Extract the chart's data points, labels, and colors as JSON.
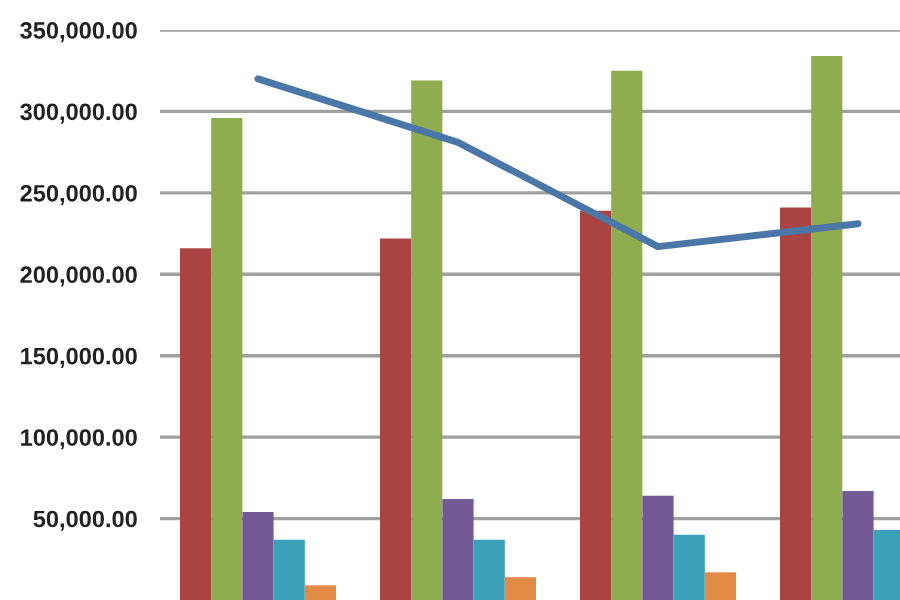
{
  "chart_data": {
    "type": "bar",
    "categories": [
      null,
      null,
      null,
      null
    ],
    "series": [
      {
        "color": "#a94442",
        "values": [
          216000,
          222000,
          239000,
          241000
        ]
      },
      {
        "color": "#8fac4e",
        "values": [
          296000,
          319000,
          325000,
          334000
        ]
      },
      {
        "color": "#735996",
        "values": [
          54000,
          62000,
          64000,
          67000
        ]
      },
      {
        "color": "#3ba1b9",
        "values": [
          37000,
          37000,
          40000,
          43000
        ]
      },
      {
        "color": "#e08a45",
        "values": [
          9000,
          14000,
          17000,
          null
        ]
      },
      {
        "type": "line",
        "color": "#4a76a8",
        "values": [
          320000,
          281000,
          217000,
          231000
        ]
      }
    ],
    "ylim": [
      0,
      350000
    ],
    "yticks": [
      {
        "value": 50000,
        "label": "50,000.00"
      },
      {
        "value": 100000,
        "label": "100,000.00"
      },
      {
        "value": 150000,
        "label": "150,000.00"
      },
      {
        "value": 200000,
        "label": "200,000.00"
      },
      {
        "value": 250000,
        "label": "250,000.00"
      },
      {
        "value": 300000,
        "label": "300,000.00"
      },
      {
        "value": 350000,
        "label": "350,000.00"
      }
    ],
    "grid": "y",
    "legend": false
  }
}
